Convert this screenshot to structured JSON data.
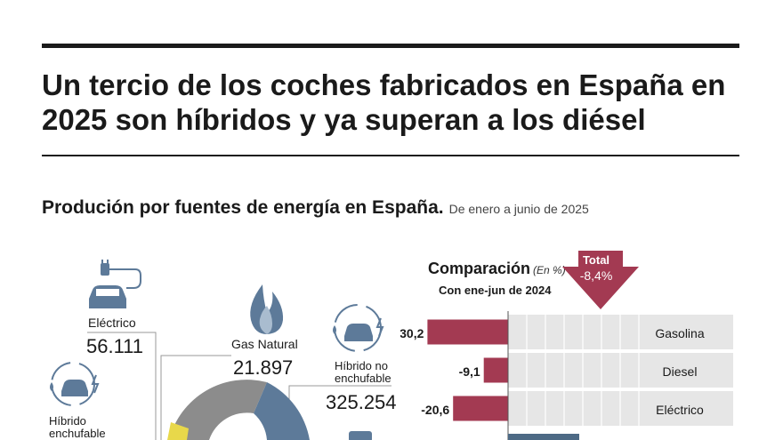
{
  "headline": "Un tercio de los coches fabricados en España en 2025 son híbridos y ya superan a los diésel",
  "subtitle": "Produción por fuentes de energía en España.",
  "period": "De enero a junio de 2025",
  "production": {
    "electrico": {
      "label": "Eléctrico",
      "value": "56.111",
      "icon": "plug-car-icon"
    },
    "gas_natural": {
      "label": "Gas Natural",
      "value": "21.897",
      "icon": "flame-icon"
    },
    "hibrido_no_enchufable": {
      "label": "Híbrido no enchufable",
      "value": "325.254",
      "icon": "hybrid-car-icon"
    },
    "hibrido_enchufable": {
      "label": "Híbrido enchufable",
      "icon": "plugin-hybrid-car-icon"
    }
  },
  "comparison": {
    "title": "Comparación",
    "unit": "(En %)",
    "subtitle": "Con ene-jun de 2024",
    "total_label": "Total",
    "total_value": "-8,4%"
  },
  "colors": {
    "negative": "#a33a52",
    "positive": "#4d6a85",
    "band": "#e6e6e6",
    "donut_gray": "#8c8c8c",
    "donut_blue": "#5d7a99",
    "donut_yellow": "#e8d84a"
  },
  "chart_data": [
    {
      "type": "bar",
      "title": "Comparación",
      "unit": "%",
      "categories": [
        "Gasolina",
        "Diesel",
        "Eléctrico"
      ],
      "values": [
        -30.2,
        -9.1,
        -20.6
      ],
      "value_labels": [
        "-30,2",
        "-9,1",
        "-20,6"
      ],
      "total": -8.4
    }
  ]
}
